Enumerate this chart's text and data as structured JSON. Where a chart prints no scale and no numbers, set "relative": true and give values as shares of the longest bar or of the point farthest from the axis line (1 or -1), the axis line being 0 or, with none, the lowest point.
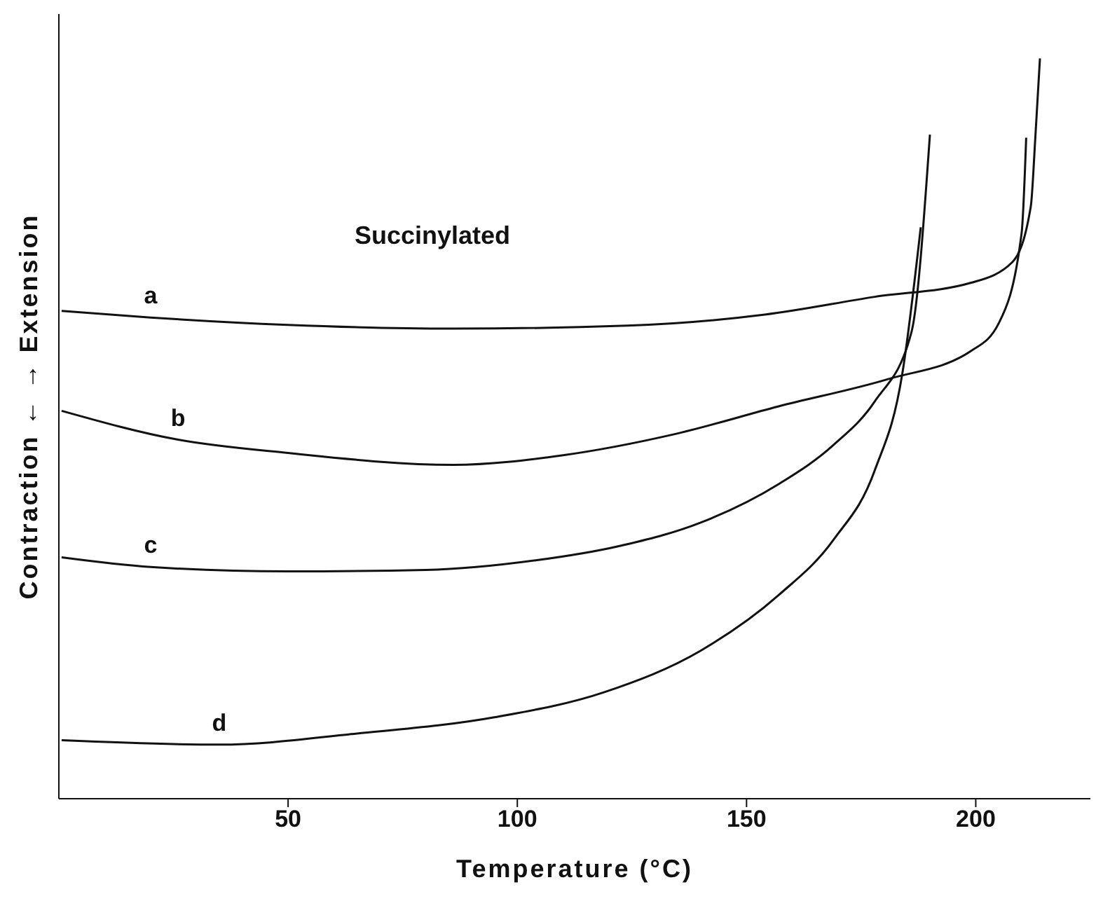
{
  "chart_data": {
    "type": "line",
    "relative": true,
    "xlabel": "Temperature (°C)",
    "ylabel": "Contraction ←   → Extension",
    "annotations": [
      "Succinylated"
    ],
    "xlim": [
      0,
      225
    ],
    "xticks": [
      50,
      100,
      150,
      200
    ],
    "grid": false,
    "legend": false,
    "marker": "none",
    "line_style": "solid",
    "series": [
      {
        "name": "a",
        "color": "#111111",
        "x": [
          0.6,
          20,
          50,
          86,
          124,
          154,
          178,
          199,
          208,
          212,
          213,
          214
        ],
        "values": [
          0.659,
          0.65,
          0.64,
          0.635,
          0.639,
          0.654,
          0.678,
          0.697,
          0.725,
          0.8,
          0.894,
          1.0
        ]
      },
      {
        "name": "b",
        "color": "#111111",
        "x": [
          0.6,
          26,
          50,
          86,
          110,
          134,
          157,
          181,
          199,
          205,
          210,
          211
        ],
        "values": [
          0.524,
          0.485,
          0.467,
          0.451,
          0.464,
          0.492,
          0.53,
          0.567,
          0.605,
          0.642,
          0.764,
          0.893
        ]
      },
      {
        "name": "c",
        "color": "#111111",
        "x": [
          0.6,
          20,
          50,
          80,
          104,
          122,
          140,
          157,
          169,
          178,
          186,
          190
        ],
        "values": [
          0.326,
          0.313,
          0.307,
          0.309,
          0.322,
          0.341,
          0.373,
          0.425,
          0.478,
          0.537,
          0.631,
          0.897
        ]
      },
      {
        "name": "d",
        "color": "#111111",
        "x": [
          0.6,
          35,
          65,
          95,
          119,
          140,
          157,
          169,
          178,
          184,
          188
        ],
        "values": [
          0.079,
          0.073,
          0.088,
          0.11,
          0.144,
          0.2,
          0.275,
          0.35,
          0.444,
          0.575,
          0.772
        ]
      }
    ]
  }
}
